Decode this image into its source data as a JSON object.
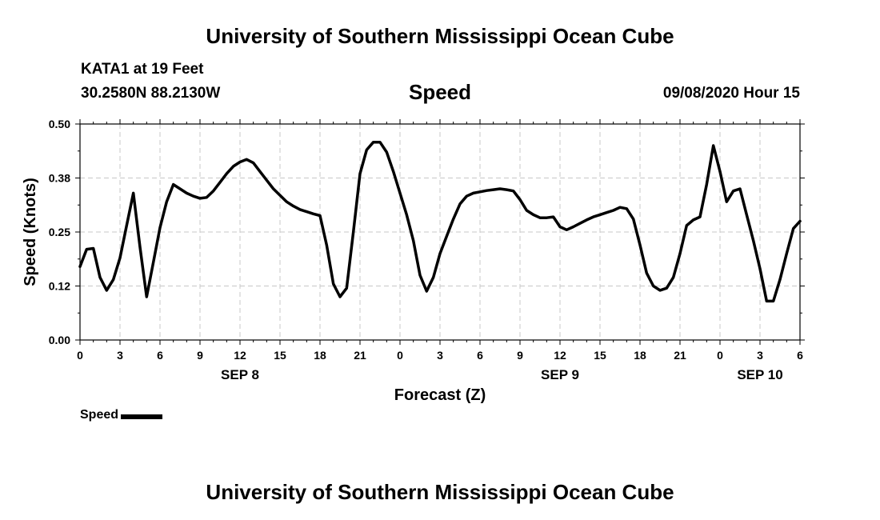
{
  "header": {
    "title": "University of Southern Mississippi Ocean Cube",
    "station": "KATA1 at 19 Feet",
    "coords": "30.2580N 88.2130W",
    "variable": "Speed",
    "datetime": "09/08/2020 Hour 15"
  },
  "footer": {
    "title": "University of Southern Mississippi Ocean Cube"
  },
  "chart_data": {
    "type": "line",
    "title": "Speed",
    "xlabel": "Forecast (Z)",
    "ylabel": "Speed (Knots)",
    "ylim": [
      0,
      0.5
    ],
    "xlim": [
      0,
      54
    ],
    "y_ticks": [
      "0.00",
      "0.12",
      "0.25",
      "0.38",
      "0.50"
    ],
    "y_tick_values": [
      0,
      0.125,
      0.25,
      0.375,
      0.5
    ],
    "x_ticks": [
      "0",
      "3",
      "6",
      "9",
      "12",
      "15",
      "18",
      "21",
      "0",
      "3",
      "6",
      "9",
      "12",
      "15",
      "18",
      "21",
      "0",
      "3",
      "6"
    ],
    "x_tick_hours": [
      0,
      3,
      6,
      9,
      12,
      15,
      18,
      21,
      24,
      27,
      30,
      33,
      36,
      39,
      42,
      45,
      48,
      51,
      54
    ],
    "day_labels": [
      {
        "label": "SEP 8",
        "hour": 12
      },
      {
        "label": "SEP 9",
        "hour": 36
      },
      {
        "label": "SEP 10",
        "hour": 51
      }
    ],
    "grid": true,
    "legend": {
      "label": "Speed",
      "position": "bottom-left"
    },
    "line_color": "#000000",
    "series": [
      {
        "name": "Speed",
        "x": [
          0,
          0.5,
          1,
          1.5,
          2,
          2.5,
          3,
          3.5,
          4,
          4.5,
          5,
          5.5,
          6,
          6.5,
          7,
          7.5,
          8,
          8.5,
          9,
          9.5,
          10,
          10.5,
          11,
          11.5,
          12,
          12.5,
          13,
          13.5,
          14,
          14.5,
          15,
          15.5,
          16,
          16.5,
          17,
          17.5,
          18,
          18.5,
          19,
          19.5,
          20,
          20.5,
          21,
          21.5,
          22,
          22.5,
          23,
          23.5,
          24,
          24.5,
          25,
          25.5,
          26,
          26.5,
          27,
          27.5,
          28,
          28.5,
          29,
          29.5,
          30,
          30.5,
          31,
          31.5,
          32,
          32.5,
          33,
          33.5,
          34,
          34.5,
          35,
          35.5,
          36,
          36.5,
          37,
          37.5,
          38,
          38.5,
          39,
          39.5,
          40,
          40.5,
          41,
          41.5,
          42,
          42.5,
          43,
          43.5,
          44,
          44.5,
          45,
          45.5,
          46,
          46.5,
          47,
          47.5,
          48,
          48.5,
          49,
          49.5,
          50,
          50.5,
          51,
          51.5,
          52,
          52.5,
          53,
          53.5,
          54
        ],
        "values": [
          0.17,
          0.21,
          0.212,
          0.145,
          0.115,
          0.14,
          0.19,
          0.265,
          0.34,
          0.215,
          0.1,
          0.18,
          0.26,
          0.32,
          0.36,
          0.35,
          0.34,
          0.333,
          0.328,
          0.33,
          0.345,
          0.365,
          0.385,
          0.402,
          0.412,
          0.418,
          0.41,
          0.39,
          0.37,
          0.35,
          0.335,
          0.32,
          0.31,
          0.302,
          0.297,
          0.292,
          0.288,
          0.22,
          0.13,
          0.1,
          0.12,
          0.25,
          0.385,
          0.44,
          0.458,
          0.458,
          0.435,
          0.39,
          0.34,
          0.29,
          0.23,
          0.15,
          0.113,
          0.145,
          0.2,
          0.24,
          0.28,
          0.315,
          0.333,
          0.34,
          0.343,
          0.346,
          0.348,
          0.35,
          0.348,
          0.345,
          0.325,
          0.3,
          0.29,
          0.283,
          0.283,
          0.285,
          0.262,
          0.255,
          0.262,
          0.27,
          0.278,
          0.285,
          0.29,
          0.295,
          0.3,
          0.307,
          0.304,
          0.28,
          0.22,
          0.155,
          0.125,
          0.115,
          0.12,
          0.145,
          0.2,
          0.265,
          0.278,
          0.285,
          0.36,
          0.45,
          0.39,
          0.32,
          0.345,
          0.35,
          0.29,
          0.23,
          0.165,
          0.09,
          0.09,
          0.14,
          0.2,
          0.258,
          0.275
        ]
      }
    ]
  }
}
